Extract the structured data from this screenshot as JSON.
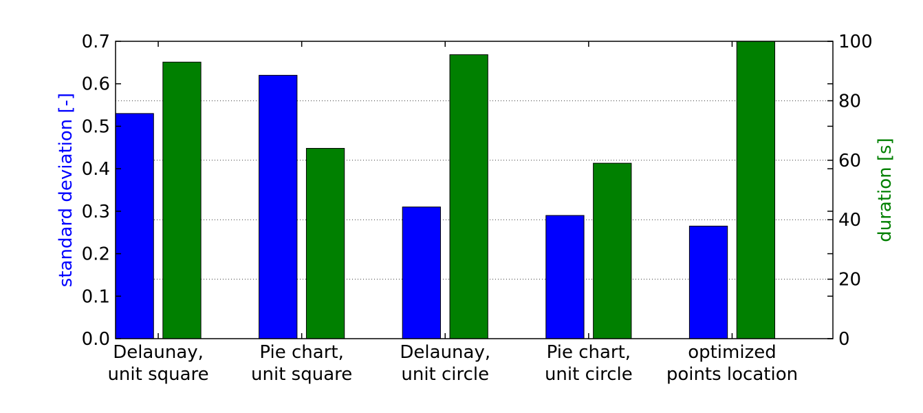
{
  "chart_data": {
    "type": "bar",
    "categories": [
      [
        "Delaunay,",
        "unit square"
      ],
      [
        "Pie chart,",
        "unit square"
      ],
      [
        "Delaunay,",
        "unit circle"
      ],
      [
        "Pie chart,",
        "unit circle"
      ],
      [
        "optimized",
        "points location"
      ]
    ],
    "series": [
      {
        "name": "standard deviation",
        "axis": "left",
        "color": "#0000ff",
        "values": [
          0.53,
          0.62,
          0.31,
          0.29,
          0.265
        ]
      },
      {
        "name": "duration",
        "axis": "right",
        "color": "#008000",
        "values": [
          93,
          64,
          95.5,
          59,
          100
        ]
      }
    ],
    "ylabel_left": "standard deviation [-]",
    "ylabel_right": "duration [s]",
    "ylim_left": [
      0,
      0.7
    ],
    "ylim_right": [
      0,
      100
    ],
    "yticks_left": [
      "0.0",
      "0.1",
      "0.2",
      "0.3",
      "0.4",
      "0.5",
      "0.6",
      "0.7"
    ],
    "yticks_right": [
      "0",
      "20",
      "40",
      "60",
      "80",
      "100"
    ],
    "grid": "horizontal dotted (right axis)"
  }
}
